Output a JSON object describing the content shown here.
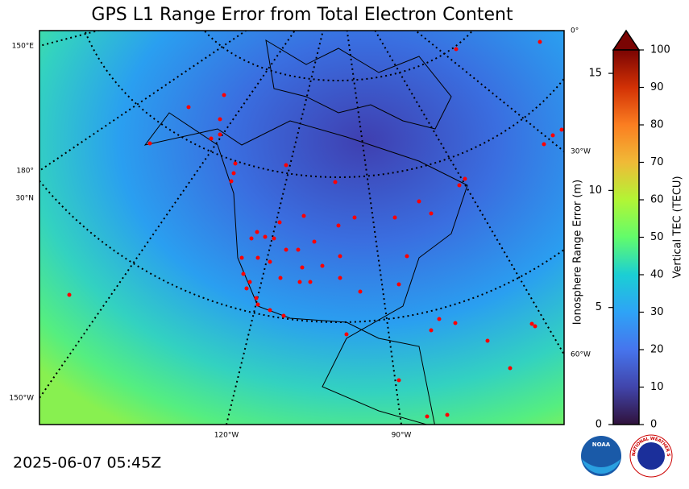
{
  "title": "GPS L1 Range Error from Total Electron Content",
  "timestamp": "2025-06-07 05:45Z",
  "map": {
    "graticule_labels": [
      "150°E",
      "180°",
      "30°N",
      "150°W",
      "120°W",
      "90°W",
      "0°",
      "30°W",
      "60°W"
    ]
  },
  "colorbar": {
    "label": "Vertical TEC (TECU)",
    "lim": [
      0,
      100
    ],
    "ticks": [
      0,
      10,
      20,
      30,
      40,
      50,
      60,
      70,
      80,
      90,
      100
    ]
  },
  "range_axis": {
    "label": "Ionosphere Range Error (m)",
    "lim": [
      0,
      16
    ],
    "ticks": [
      0,
      5,
      10,
      15
    ]
  },
  "logos": {
    "noaa": "NOAA",
    "nws": "NATIONAL WEATHER SERVICE"
  }
}
